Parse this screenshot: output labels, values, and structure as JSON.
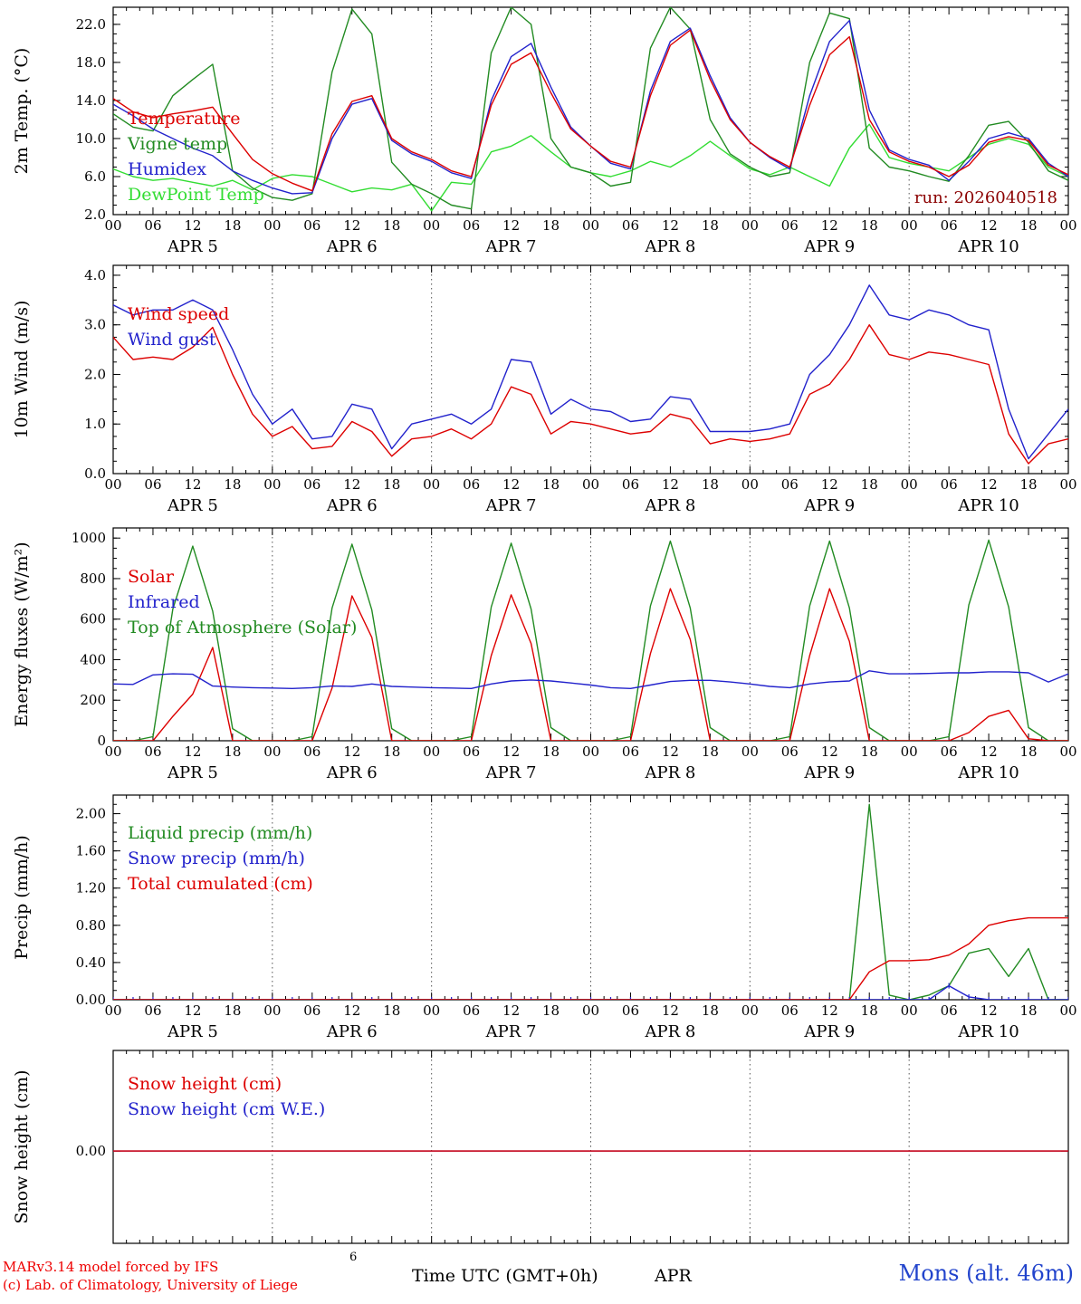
{
  "page": {
    "footer": {
      "model_line1": "MARv3.14 model forced by IFS",
      "model_line2": "(c) Lab. of Climatology, University of Liege",
      "xaxis_title": "Time UTC (GMT+0h)",
      "month_label": "APR",
      "station_label": "Mons (alt. 46m)",
      "stray_digit": "6"
    },
    "colors": {
      "red": "#dd0000",
      "blue": "#2222cc",
      "dark_green": "#228b22",
      "light_green": "#33dd33",
      "run_label": "#8b0000",
      "footer_red": "#ee0000",
      "footer_blue": "#2244cc"
    }
  },
  "x_axis": {
    "hours_total": 144,
    "step_hours": 3,
    "major_tick_hours": 6,
    "minor_tick_hours": 2,
    "hour_labels": [
      "00",
      "06",
      "12",
      "18"
    ],
    "day_labels": [
      "APR  5",
      "APR  6",
      "APR  7",
      "APR  8",
      "APR  9",
      "APR 10"
    ]
  },
  "chart_data": [
    {
      "id": "temperature-2m",
      "type": "line",
      "ylabel": "2m Temp. (°C)",
      "xlabel": "",
      "ylim": [
        2.0,
        23.8
      ],
      "yticks": [
        2.0,
        6.0,
        10.0,
        14.0,
        18.0,
        22.0
      ],
      "ytick_labels": [
        "2.0",
        "6.0",
        "10.0",
        "14.0",
        "18.0",
        "22.0"
      ],
      "legend": [
        {
          "label": "Temperature",
          "color": "#dd0000"
        },
        {
          "label": "Vigne temp",
          "color": "#228b22"
        },
        {
          "label": "Humidex",
          "color": "#2222cc"
        },
        {
          "label": "DewPoint Temp",
          "color": "#33dd33"
        }
      ],
      "annotations": [
        {
          "text": "run: 2026040518",
          "color": "#8b0000",
          "dy": 216
        }
      ],
      "series": [
        {
          "name": "DewPoint Temp",
          "color": "#33dd33",
          "values": [
            6.8,
            6.0,
            5.6,
            5.8,
            5.4,
            5.0,
            5.6,
            4.6,
            5.8,
            6.2,
            6.0,
            5.2,
            4.4,
            4.8,
            4.6,
            5.2,
            2.4,
            5.4,
            5.2,
            8.6,
            9.2,
            10.3,
            8.6,
            7.0,
            6.4,
            6.0,
            6.6,
            7.6,
            7.0,
            8.2,
            9.7,
            8.2,
            6.8,
            6.2,
            7.0,
            6.0,
            5.0,
            9.0,
            11.5,
            8.0,
            7.4,
            7.0,
            6.6,
            8.0,
            9.4,
            10.0,
            9.4,
            7.0,
            6.0
          ]
        },
        {
          "name": "Vigne temp",
          "color": "#228b22",
          "values": [
            12.6,
            11.2,
            10.8,
            14.5,
            16.2,
            17.8,
            6.6,
            4.8,
            3.8,
            3.5,
            4.2,
            17.0,
            23.6,
            21.0,
            7.5,
            5.2,
            4.2,
            3.0,
            2.6,
            19.0,
            24.5,
            22.0,
            10.0,
            7.0,
            6.4,
            5.0,
            5.4,
            19.5,
            24.5,
            21.5,
            12.0,
            8.4,
            7.0,
            6.0,
            6.4,
            18.0,
            23.2,
            22.6,
            9.0,
            7.0,
            6.6,
            6.0,
            5.5,
            8.2,
            11.4,
            11.8,
            9.6,
            6.6,
            5.6
          ]
        },
        {
          "name": "Humidex",
          "color": "#2222cc",
          "values": [
            13.6,
            12.4,
            11.0,
            10.0,
            9.0,
            8.2,
            6.6,
            5.6,
            4.8,
            4.2,
            4.3,
            10.0,
            13.6,
            14.2,
            9.8,
            8.4,
            7.6,
            6.4,
            5.8,
            14.0,
            18.6,
            20.0,
            15.4,
            11.2,
            9.2,
            7.4,
            6.8,
            15.0,
            20.2,
            21.6,
            16.6,
            12.2,
            9.6,
            8.0,
            6.8,
            14.5,
            20.2,
            22.4,
            13.0,
            8.8,
            7.8,
            7.2,
            5.6,
            7.6,
            10.0,
            10.6,
            10.0,
            7.4,
            6.0
          ]
        },
        {
          "name": "Temperature",
          "color": "#dd0000",
          "values": [
            14.2,
            12.8,
            12.2,
            12.6,
            12.9,
            13.3,
            10.5,
            7.8,
            6.3,
            5.3,
            4.5,
            10.5,
            13.9,
            14.5,
            10.0,
            8.6,
            7.8,
            6.6,
            6.0,
            13.5,
            17.8,
            19.0,
            14.8,
            11.0,
            9.2,
            7.6,
            7.0,
            14.5,
            19.8,
            21.4,
            16.2,
            12.0,
            9.6,
            8.1,
            7.0,
            13.5,
            18.8,
            20.7,
            12.0,
            8.6,
            7.6,
            7.0,
            6.0,
            7.2,
            9.6,
            10.2,
            9.8,
            7.2,
            6.2
          ]
        }
      ]
    },
    {
      "id": "wind-10m",
      "type": "line",
      "ylabel": "10m Wind (m/s)",
      "xlabel": "",
      "ylim": [
        0.0,
        4.2
      ],
      "yticks": [
        0.0,
        1.0,
        2.0,
        3.0,
        4.0
      ],
      "ytick_labels": [
        "0.0",
        "1.0",
        "2.0",
        "3.0",
        "4.0"
      ],
      "legend": [
        {
          "label": "Wind speed",
          "color": "#dd0000"
        },
        {
          "label": "Wind gust",
          "color": "#2222cc"
        }
      ],
      "series": [
        {
          "name": "Wind gust",
          "color": "#2222cc",
          "values": [
            3.4,
            3.2,
            3.3,
            3.3,
            3.5,
            3.3,
            2.5,
            1.6,
            1.0,
            1.3,
            0.7,
            0.75,
            1.4,
            1.3,
            0.5,
            1.0,
            1.1,
            1.2,
            1.0,
            1.3,
            2.3,
            2.25,
            1.2,
            1.5,
            1.3,
            1.25,
            1.05,
            1.1,
            1.55,
            1.5,
            0.85,
            0.85,
            0.85,
            0.9,
            1.0,
            2.0,
            2.4,
            3.0,
            3.8,
            3.2,
            3.1,
            3.3,
            3.2,
            3.0,
            2.9,
            1.3,
            0.3,
            0.8,
            1.3
          ]
        },
        {
          "name": "Wind speed",
          "color": "#dd0000",
          "values": [
            2.75,
            2.3,
            2.35,
            2.3,
            2.55,
            2.95,
            2.0,
            1.2,
            0.75,
            0.95,
            0.5,
            0.55,
            1.05,
            0.85,
            0.35,
            0.7,
            0.75,
            0.9,
            0.7,
            1.0,
            1.75,
            1.6,
            0.8,
            1.05,
            1.0,
            0.9,
            0.8,
            0.85,
            1.2,
            1.1,
            0.6,
            0.7,
            0.65,
            0.7,
            0.8,
            1.6,
            1.8,
            2.3,
            3.0,
            2.4,
            2.3,
            2.45,
            2.4,
            2.3,
            2.2,
            0.8,
            0.2,
            0.6,
            0.7
          ]
        }
      ]
    },
    {
      "id": "energy-fluxes",
      "type": "line",
      "ylabel": "Energy fluxes (W/m²)",
      "xlabel": "",
      "ylim": [
        0,
        1050
      ],
      "yticks": [
        0,
        200,
        400,
        600,
        800,
        1000
      ],
      "ytick_labels": [
        "0",
        "200",
        "400",
        "600",
        "800",
        "1000"
      ],
      "legend": [
        {
          "label": "Solar",
          "color": "#dd0000"
        },
        {
          "label": "Infrared",
          "color": "#2222cc"
        },
        {
          "label": "Top of Atmosphere (Solar)",
          "color": "#228b22"
        }
      ],
      "series": [
        {
          "name": "Top of Atmosphere (Solar)",
          "color": "#228b22",
          "values": [
            0,
            0,
            20,
            650,
            960,
            640,
            60,
            0,
            0,
            0,
            20,
            655,
            970,
            645,
            60,
            0,
            0,
            0,
            20,
            660,
            975,
            650,
            65,
            0,
            0,
            0,
            20,
            665,
            985,
            655,
            65,
            0,
            0,
            0,
            20,
            665,
            985,
            655,
            65,
            0,
            0,
            0,
            20,
            670,
            990,
            660,
            65,
            0,
            0
          ]
        },
        {
          "name": "Solar",
          "color": "#dd0000",
          "values": [
            0,
            0,
            0,
            120,
            230,
            460,
            0,
            0,
            0,
            0,
            0,
            260,
            715,
            510,
            0,
            0,
            0,
            0,
            0,
            420,
            720,
            480,
            0,
            0,
            0,
            0,
            0,
            430,
            750,
            500,
            0,
            0,
            0,
            0,
            0,
            420,
            750,
            490,
            0,
            0,
            0,
            0,
            0,
            40,
            120,
            150,
            10,
            0,
            0
          ]
        },
        {
          "name": "Infrared",
          "color": "#2222cc",
          "values": [
            280,
            278,
            325,
            330,
            328,
            270,
            265,
            262,
            260,
            258,
            262,
            270,
            268,
            280,
            268,
            265,
            262,
            260,
            258,
            280,
            295,
            300,
            295,
            285,
            275,
            262,
            258,
            275,
            292,
            298,
            298,
            290,
            280,
            268,
            262,
            280,
            290,
            295,
            345,
            330,
            330,
            332,
            335,
            335,
            340,
            340,
            335,
            290,
            330
          ]
        }
      ]
    },
    {
      "id": "precipitation",
      "type": "line",
      "ylabel": "Precip (mm/h)",
      "xlabel": "",
      "ylim": [
        0.0,
        2.2
      ],
      "yticks": [
        0.0,
        0.4,
        0.8,
        1.2,
        1.6,
        2.0
      ],
      "ytick_labels": [
        "0.00",
        "0.40",
        "0.80",
        "1.20",
        "1.60",
        "2.00"
      ],
      "legend": [
        {
          "label": "Liquid precip (mm/h)",
          "color": "#228b22"
        },
        {
          "label": "Snow precip (mm/h)",
          "color": "#2222cc"
        },
        {
          "label": "Total cumulated (cm)",
          "color": "#dd0000"
        }
      ],
      "series": [
        {
          "name": "Liquid precip (mm/h)",
          "color": "#228b22",
          "values": [
            0,
            0,
            0,
            0,
            0,
            0,
            0,
            0,
            0,
            0,
            0,
            0,
            0,
            0,
            0,
            0,
            0,
            0,
            0,
            0,
            0,
            0,
            0,
            0,
            0,
            0,
            0,
            0,
            0,
            0,
            0,
            0,
            0,
            0,
            0,
            0,
            0,
            0,
            2.1,
            0.05,
            0,
            0.05,
            0.15,
            0.5,
            0.55,
            0.25,
            0.55,
            0,
            0
          ]
        },
        {
          "name": "Snow precip (mm/h)",
          "color": "#2222cc",
          "marker": "vtick",
          "values": [
            0,
            0,
            0,
            0,
            0,
            0,
            0,
            0,
            0,
            0,
            0,
            0,
            0,
            0,
            0,
            0,
            0,
            0,
            0,
            0,
            0,
            0,
            0,
            0,
            0,
            0,
            0,
            0,
            0,
            0,
            0,
            0,
            0,
            0,
            0,
            0,
            0,
            0,
            0,
            0,
            0,
            0,
            0.15,
            0.03,
            0,
            0,
            0,
            0,
            0
          ]
        },
        {
          "name": "Total cumulated (cm)",
          "color": "#dd0000",
          "values": [
            0,
            0,
            0,
            0,
            0,
            0,
            0,
            0,
            0,
            0,
            0,
            0,
            0,
            0,
            0,
            0,
            0,
            0,
            0,
            0,
            0,
            0,
            0,
            0,
            0,
            0,
            0,
            0,
            0,
            0,
            0,
            0,
            0,
            0,
            0,
            0,
            0,
            0,
            0.3,
            0.42,
            0.42,
            0.43,
            0.48,
            0.6,
            0.8,
            0.85,
            0.88,
            0.88,
            0.88
          ]
        }
      ]
    },
    {
      "id": "snow-height",
      "type": "line",
      "ylabel": "Snow height (cm)",
      "xlabel": "",
      "ylim": [
        -1.1,
        1.2
      ],
      "yticks": [
        0.0
      ],
      "ytick_labels": [
        "0.00"
      ],
      "legend": [
        {
          "label": "Snow height (cm)",
          "color": "#dd0000"
        },
        {
          "label": "Snow height (cm W.E.)",
          "color": "#2222cc"
        }
      ],
      "series": [
        {
          "name": "Snow height (cm W.E.)",
          "color": "#2222cc",
          "values": [
            0,
            0,
            0,
            0,
            0,
            0,
            0,
            0,
            0,
            0,
            0,
            0,
            0,
            0,
            0,
            0,
            0,
            0,
            0,
            0,
            0,
            0,
            0,
            0,
            0,
            0,
            0,
            0,
            0,
            0,
            0,
            0,
            0,
            0,
            0,
            0,
            0,
            0,
            0,
            0,
            0,
            0,
            0,
            0,
            0,
            0,
            0,
            0,
            0
          ]
        },
        {
          "name": "Snow height (cm)",
          "color": "#dd0000",
          "values": [
            0,
            0,
            0,
            0,
            0,
            0,
            0,
            0,
            0,
            0,
            0,
            0,
            0,
            0,
            0,
            0,
            0,
            0,
            0,
            0,
            0,
            0,
            0,
            0,
            0,
            0,
            0,
            0,
            0,
            0,
            0,
            0,
            0,
            0,
            0,
            0,
            0,
            0,
            0,
            0,
            0,
            0,
            0,
            0,
            0,
            0,
            0,
            0,
            0
          ]
        }
      ]
    }
  ]
}
